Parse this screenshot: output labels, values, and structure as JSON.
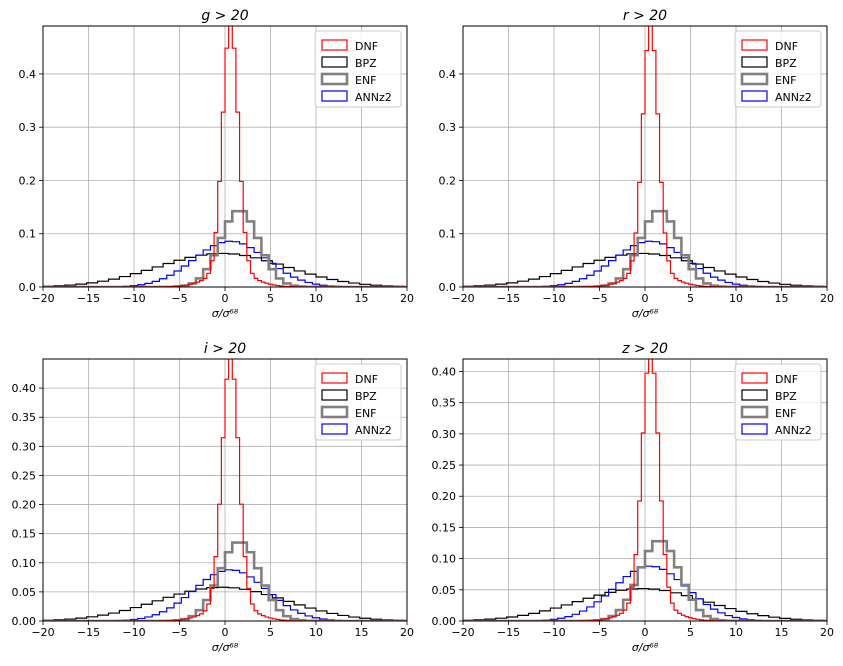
{
  "figure": {
    "xlabel": "σ/σ⁶⁸",
    "legend_location": "upper right",
    "grid": true
  },
  "series_styles": [
    {
      "name": "DNF",
      "color": "#ff0000",
      "width": "thin"
    },
    {
      "name": "BPZ",
      "color": "#000000",
      "width": "thin"
    },
    {
      "name": "ENF",
      "color": "#808080",
      "width": "thick"
    },
    {
      "name": "ANNz2",
      "color": "#0000ff",
      "width": "thin"
    }
  ],
  "chart_data": [
    {
      "type": "histogram-step",
      "title": "g > 20",
      "xlabel": "σ/σ⁶⁸",
      "xlim": [
        -20,
        20
      ],
      "ylim": [
        0,
        0.49
      ],
      "xticks": [
        "−20",
        "−15",
        "−10",
        "−5",
        "0",
        "5",
        "10",
        "15",
        "20"
      ],
      "yticks": [
        0,
        0.1,
        0.2,
        0.3,
        0.4
      ],
      "ytick_labels": [
        "0.0",
        "0.1",
        "0.2",
        "0.3",
        "0.4"
      ],
      "legend": [
        "DNF",
        "BPZ",
        "ENF",
        "ANNz2"
      ],
      "series": [
        {
          "name": "DNF",
          "peak": 0.47,
          "center": 0.6,
          "sigma": 0.85,
          "bg": 0.028,
          "bgsigma": 2.4,
          "bin": 0.4
        },
        {
          "name": "BPZ",
          "peak": 0.063,
          "center": -0.3,
          "sigma": 7.0,
          "bin": 1.2
        },
        {
          "name": "ENF",
          "peak": 0.145,
          "center": 1.6,
          "sigma": 2.1,
          "bin": 0.8
        },
        {
          "name": "ANNz2",
          "peak": 0.086,
          "center": 0.6,
          "sigma": 4.0,
          "bin": 0.8
        }
      ]
    },
    {
      "type": "histogram-step",
      "title": "r > 20",
      "xlabel": "σ/σ⁶⁸",
      "xlim": [
        -20,
        20
      ],
      "ylim": [
        0,
        0.49
      ],
      "xticks": [
        "−20",
        "−15",
        "−10",
        "−5",
        "0",
        "5",
        "10",
        "15",
        "20"
      ],
      "yticks": [
        0,
        0.1,
        0.2,
        0.3,
        0.4
      ],
      "ytick_labels": [
        "0.0",
        "0.1",
        "0.2",
        "0.3",
        "0.4"
      ],
      "legend": [
        "DNF",
        "BPZ",
        "ENF",
        "ANNz2"
      ],
      "series": [
        {
          "name": "DNF",
          "peak": 0.465,
          "center": 0.6,
          "sigma": 0.85,
          "bg": 0.028,
          "bgsigma": 2.4,
          "bin": 0.4
        },
        {
          "name": "BPZ",
          "peak": 0.063,
          "center": -0.3,
          "sigma": 7.0,
          "bin": 1.2
        },
        {
          "name": "ENF",
          "peak": 0.145,
          "center": 1.6,
          "sigma": 2.1,
          "bin": 0.8
        },
        {
          "name": "ANNz2",
          "peak": 0.086,
          "center": 0.6,
          "sigma": 4.0,
          "bin": 0.8
        }
      ]
    },
    {
      "type": "histogram-step",
      "title": "i > 20",
      "xlabel": "σ/σ⁶⁸",
      "xlim": [
        -20,
        20
      ],
      "ylim": [
        0,
        0.45
      ],
      "xticks": [
        "−20",
        "−15",
        "−10",
        "−5",
        "0",
        "5",
        "10",
        "15",
        "20"
      ],
      "yticks": [
        0,
        0.05,
        0.1,
        0.15,
        0.2,
        0.25,
        0.3,
        0.35,
        0.4
      ],
      "ytick_labels": [
        "0.00",
        "0.05",
        "0.10",
        "0.15",
        "0.20",
        "0.25",
        "0.30",
        "0.35",
        "0.40"
      ],
      "legend": [
        "DNF",
        "BPZ",
        "ENF",
        "ANNz2"
      ],
      "series": [
        {
          "name": "DNF",
          "peak": 0.428,
          "center": 0.6,
          "sigma": 0.9,
          "bg": 0.028,
          "bgsigma": 2.4,
          "bin": 0.4
        },
        {
          "name": "BPZ",
          "peak": 0.058,
          "center": -0.3,
          "sigma": 7.0,
          "bin": 1.2
        },
        {
          "name": "ENF",
          "peak": 0.137,
          "center": 1.6,
          "sigma": 2.2,
          "bin": 0.8
        },
        {
          "name": "ANNz2",
          "peak": 0.088,
          "center": 0.6,
          "sigma": 4.0,
          "bin": 0.8
        }
      ]
    },
    {
      "type": "histogram-step",
      "title": "z > 20",
      "xlabel": "σ/σ⁶⁸",
      "xlim": [
        -20,
        20
      ],
      "ylim": [
        0,
        0.42
      ],
      "xticks": [
        "−20",
        "−15",
        "−10",
        "−5",
        "0",
        "5",
        "10",
        "15",
        "20"
      ],
      "yticks": [
        0,
        0.05,
        0.1,
        0.15,
        0.2,
        0.25,
        0.3,
        0.35,
        0.4
      ],
      "ytick_labels": [
        "0.00",
        "0.05",
        "0.10",
        "0.15",
        "0.20",
        "0.25",
        "0.30",
        "0.35",
        "0.40"
      ],
      "legend": [
        "DNF",
        "BPZ",
        "ENF",
        "ANNz2"
      ],
      "series": [
        {
          "name": "DNF",
          "peak": 0.408,
          "center": 0.6,
          "sigma": 0.9,
          "bg": 0.028,
          "bgsigma": 2.4,
          "bin": 0.4
        },
        {
          "name": "BPZ",
          "peak": 0.052,
          "center": -0.3,
          "sigma": 7.0,
          "bin": 1.2
        },
        {
          "name": "ENF",
          "peak": 0.13,
          "center": 1.6,
          "sigma": 2.2,
          "bin": 0.8
        },
        {
          "name": "ANNz2",
          "peak": 0.088,
          "center": 0.6,
          "sigma": 4.0,
          "bin": 0.8
        }
      ]
    }
  ]
}
